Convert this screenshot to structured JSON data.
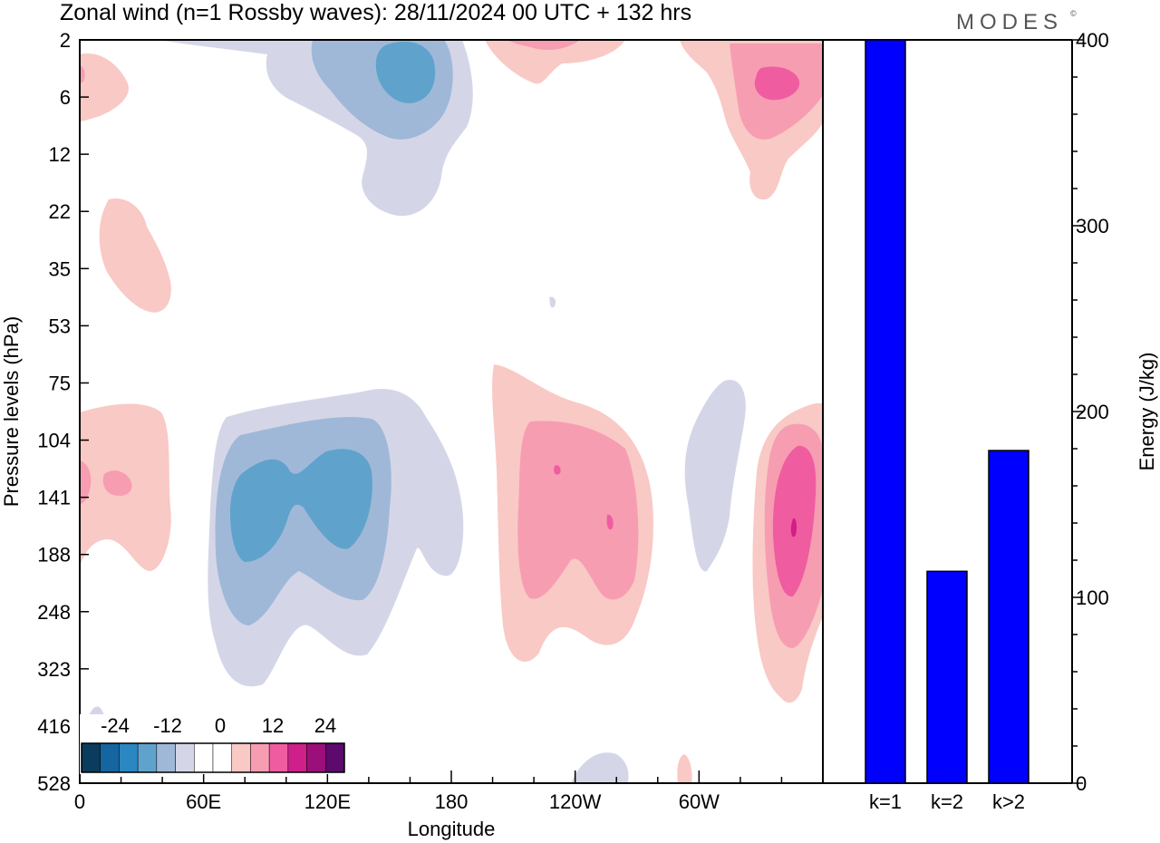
{
  "header": {
    "title": "Zonal wind (n=1 Rossby waves):  28/11/2024  00 UTC  + 132 hrs",
    "logo": "MODES",
    "logo_mark": "©"
  },
  "colors": {
    "blue_levels": [
      "#0b3c5d",
      "#1565a0",
      "#2a87c2",
      "#5fa3cc",
      "#a0b8d8",
      "#d4d6e8"
    ],
    "white": "#ffffff",
    "pink_levels": [
      "#f9c9c5",
      "#f79db2",
      "#ef5da0",
      "#cf1f8a",
      "#9c0e7a",
      "#5c0a6b"
    ],
    "bar_fill": "#0000ff"
  },
  "chart_data": [
    {
      "type": "heatmap",
      "title": "Zonal wind (n=1 Rossby waves):  28/11/2024  00 UTC  + 132 hrs",
      "xlabel": "Longitude",
      "ylabel": "Pressure levels (hPa)",
      "x_ticks": [
        "0",
        "60E",
        "120E",
        "180",
        "120W",
        "60W"
      ],
      "y_ticks": [
        "2",
        "6",
        "12",
        "22",
        "35",
        "53",
        "75",
        "104",
        "141",
        "188",
        "248",
        "323",
        "416",
        "528"
      ],
      "colorbar": {
        "tick_labels": [
          "-24",
          "-12",
          "0",
          "12",
          "24"
        ],
        "levels": [
          -30,
          -25,
          -20,
          -15,
          -10,
          -5,
          0,
          5,
          10,
          15,
          20,
          25,
          30
        ]
      }
    },
    {
      "type": "bar",
      "categories": [
        "k=1",
        "k=2",
        "k>2"
      ],
      "values": [
        400,
        114,
        179
      ],
      "ylabel": "Energy (J/kg)",
      "ylim": [
        0,
        400
      ],
      "y_ticks": [
        "0",
        "100",
        "200",
        "300",
        "400"
      ]
    }
  ]
}
